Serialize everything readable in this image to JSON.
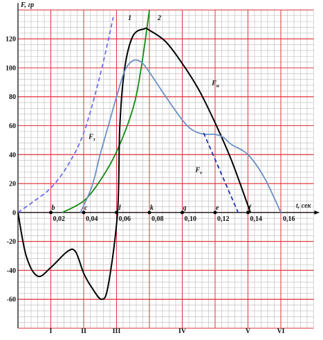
{
  "chart_data": {
    "type": "line",
    "y_axis_label": "F, гр",
    "x_axis_label": "t, сек",
    "xlim": [
      0,
      0.18
    ],
    "ylim": [
      -80,
      140
    ],
    "xticks": [
      {
        "value": 0.02,
        "label": "0,02"
      },
      {
        "value": 0.04,
        "label": "0,04"
      },
      {
        "value": 0.06,
        "label": "0,06"
      },
      {
        "value": 0.08,
        "label": "0,08"
      },
      {
        "value": 0.1,
        "label": "0,10"
      },
      {
        "value": 0.12,
        "label": "0,12"
      },
      {
        "value": 0.14,
        "label": "0,14"
      },
      {
        "value": 0.16,
        "label": "0,16"
      }
    ],
    "yticks": [
      -60,
      -40,
      -20,
      0,
      20,
      40,
      60,
      80,
      100,
      120
    ],
    "grid": true,
    "points": [
      {
        "label": "b",
        "x": 0.02
      },
      {
        "label": "c",
        "x": 0.04
      },
      {
        "label": "d",
        "x": 0.06
      },
      {
        "label": "k",
        "x": 0.08
      },
      {
        "label": "g",
        "x": 0.1
      },
      {
        "label": "e",
        "x": 0.12
      },
      {
        "label": "f",
        "x": 0.14
      }
    ],
    "phases": [
      {
        "label": "I",
        "x": 0.02
      },
      {
        "label": "II",
        "x": 0.04
      },
      {
        "label": "III",
        "x": 0.06
      },
      {
        "label": "IV",
        "x": 0.1
      },
      {
        "label": "V",
        "x": 0.14
      },
      {
        "label": "VI",
        "x": 0.16
      }
    ],
    "series": [
      {
        "name": "1",
        "color": "#6a6cf0",
        "dash": true,
        "x": [
          0,
          0.01,
          0.02,
          0.03,
          0.04,
          0.05,
          0.058
        ],
        "values": [
          0,
          8,
          17,
          32,
          55,
          95,
          135
        ]
      },
      {
        "name": "2",
        "color": "#118a11",
        "dash": false,
        "x": [
          0.027,
          0.04,
          0.05,
          0.06,
          0.07,
          0.075,
          0.08
        ],
        "values": [
          0,
          8,
          22,
          42,
          72,
          100,
          140
        ]
      },
      {
        "name": "Fн",
        "color": "#000000",
        "dash": false,
        "x": [
          0,
          0.005,
          0.012,
          0.02,
          0.03,
          0.035,
          0.04,
          0.045,
          0.051,
          0.055,
          0.0606,
          0.062,
          0.065,
          0.07,
          0.077,
          0.08,
          0.09,
          0.1,
          0.11,
          0.12,
          0.13,
          0.1415
        ],
        "values": [
          0,
          -30,
          -44,
          -38,
          -27,
          -27,
          -42,
          -52,
          -60,
          -50,
          0,
          60,
          100,
          122,
          127,
          126,
          118,
          103,
          85,
          62,
          36,
          0
        ]
      },
      {
        "name": "Fτ",
        "color": "#6b8fc4",
        "dash": false,
        "x": [
          0.038,
          0.045,
          0.05,
          0.055,
          0.06,
          0.065,
          0.07,
          0.075,
          0.08,
          0.09,
          0.1,
          0.105,
          0.11,
          0.115,
          0.12,
          0.125,
          0.13,
          0.14,
          0.15,
          0.16
        ],
        "values": [
          0,
          18,
          40,
          60,
          80,
          98,
          105,
          104,
          97,
          80,
          64,
          58,
          55,
          54,
          54,
          52,
          47,
          40,
          24,
          0
        ]
      },
      {
        "name": "Fv",
        "color": "#1f2fb0",
        "dash": true,
        "x": [
          0.113,
          0.134
        ],
        "values": [
          55,
          0
        ]
      }
    ]
  }
}
